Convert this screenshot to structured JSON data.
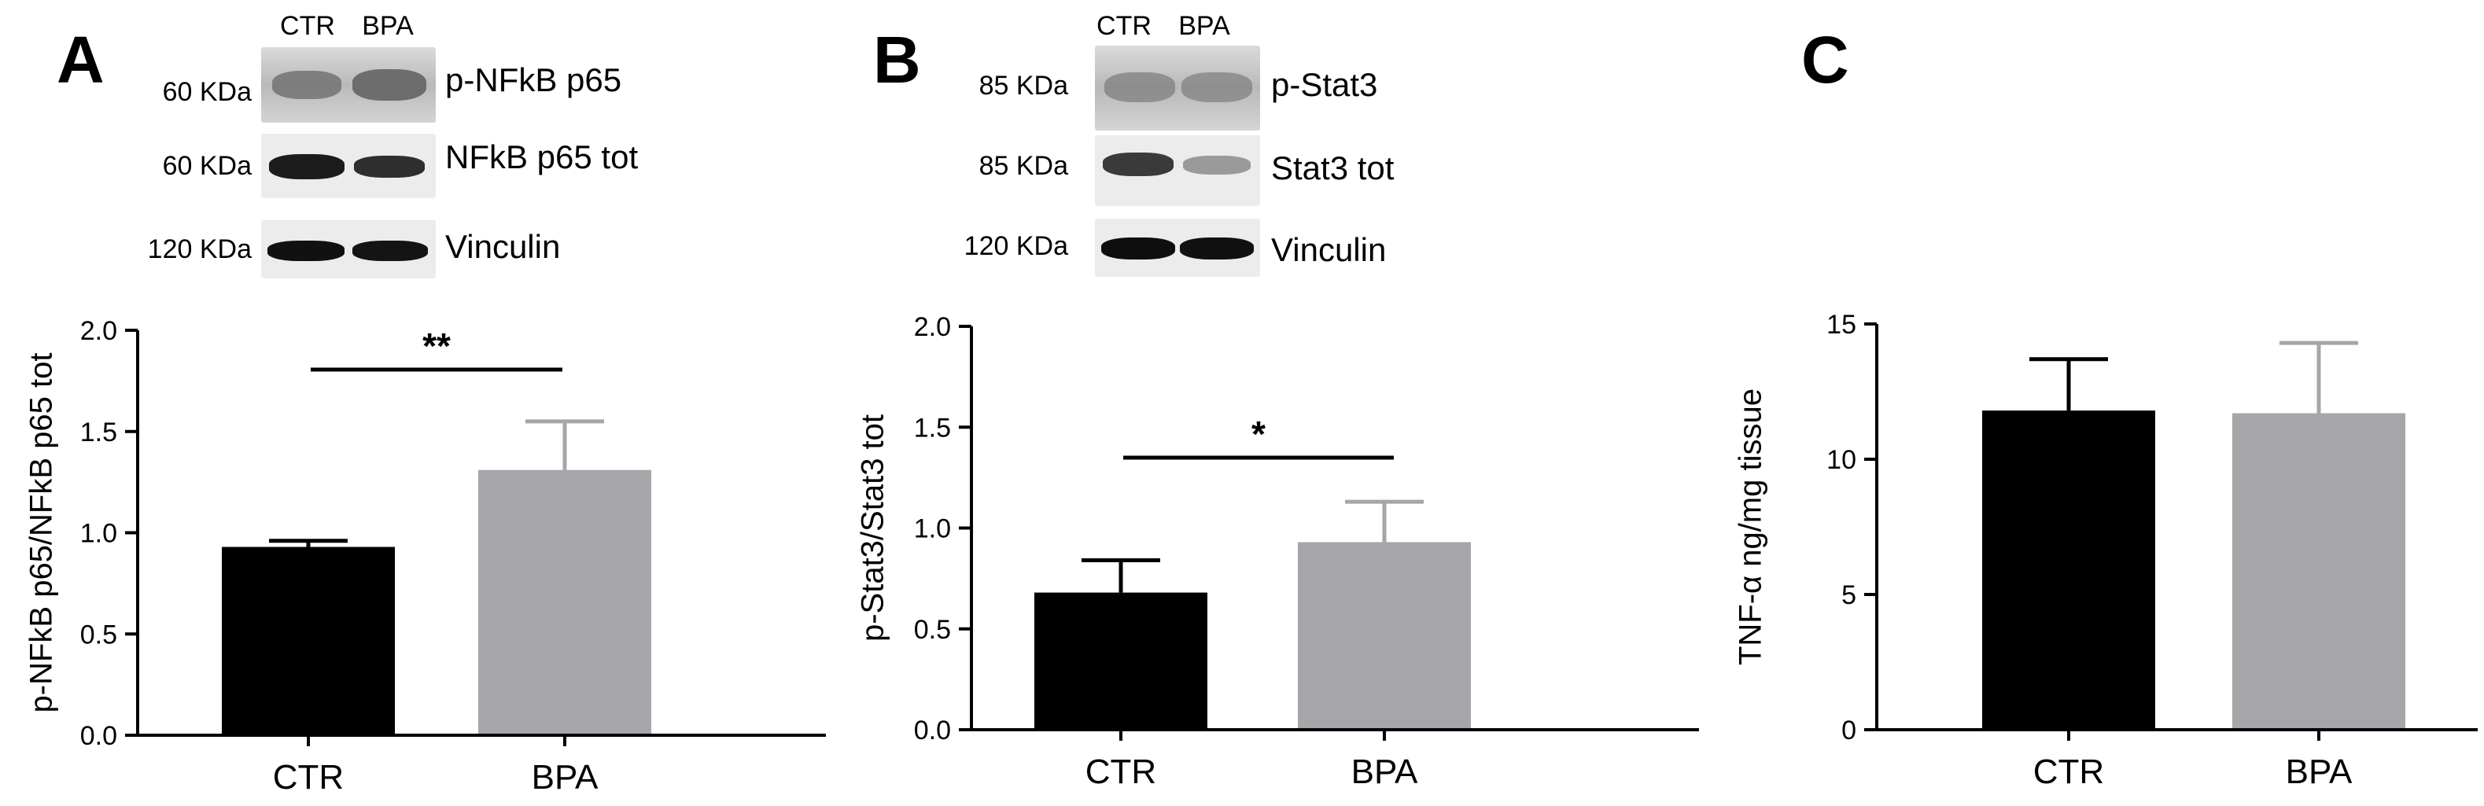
{
  "panels": [
    {
      "letter": "A",
      "blot": {
        "lanes": [
          "CTR",
          "BPA"
        ],
        "rows": [
          {
            "kda": "60 KDa",
            "protein": "p-NFkB p65"
          },
          {
            "kda": "60 KDa",
            "protein": "NFkB p65 tot"
          },
          {
            "kda": "120 KDa",
            "protein": "Vinculin"
          }
        ]
      }
    },
    {
      "letter": "B",
      "blot": {
        "lanes": [
          "CTR",
          "BPA"
        ],
        "rows": [
          {
            "kda": "85 KDa",
            "protein": "p-Stat3"
          },
          {
            "kda": "85 KDa",
            "protein": "Stat3 tot"
          },
          {
            "kda": "120 KDa",
            "protein": "Vinculin"
          }
        ]
      }
    },
    {
      "letter": "C"
    }
  ],
  "chart_data": [
    {
      "type": "bar",
      "categories": [
        "CTR",
        "BPA"
      ],
      "values": [
        0.93,
        1.31
      ],
      "errors": [
        0.03,
        0.24
      ],
      "colors": [
        "#000000",
        "#a6a6aa"
      ],
      "ylabel": "p-NFkB p65/NFkB p65 tot",
      "ylim": [
        0,
        2.0
      ],
      "yticks": [
        "0.0",
        "0.5",
        "1.0",
        "1.5",
        "2.0"
      ],
      "significance": "**"
    },
    {
      "type": "bar",
      "categories": [
        "CTR",
        "BPA"
      ],
      "values": [
        0.68,
        0.93
      ],
      "errors": [
        0.16,
        0.2
      ],
      "colors": [
        "#000000",
        "#a6a6aa"
      ],
      "ylabel": "p-Stat3/Stat3 tot",
      "ylim": [
        0,
        2.0
      ],
      "yticks": [
        "0.0",
        "0.5",
        "1.0",
        "1.5",
        "2.0"
      ],
      "significance": "*"
    },
    {
      "type": "bar",
      "categories": [
        "CTR",
        "BPA"
      ],
      "values": [
        11.8,
        11.7
      ],
      "errors": [
        1.9,
        2.6
      ],
      "colors": [
        "#000000",
        "#a6a6aa"
      ],
      "ylabel": "TNF-α ng/mg tissue",
      "ylim": [
        0,
        15
      ],
      "yticks": [
        "0",
        "5",
        "10",
        "15"
      ],
      "significance": ""
    }
  ]
}
